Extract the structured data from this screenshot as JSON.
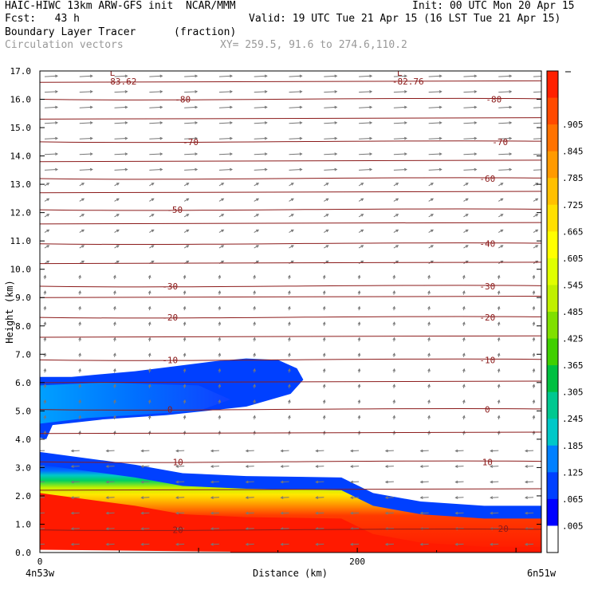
{
  "header": {
    "line1_left": "HAIC-HIWC 13km ARW-GFS init  NCAR/MMM",
    "line1_right": "Init: 00 UTC Mon 20 Apr 15",
    "line2_left": "Fcst:   43 h",
    "line2_right": "Valid: 19 UTC Tue 21 Apr 15 (16 LST Tue 21 Apr 15)",
    "line3_left": "Boundary Layer Tracer",
    "line3_mid": "(fraction)",
    "line4_left": "Circulation vectors",
    "line4_mid": "XY= 259.5, 91.6 to 274.6,110.2"
  },
  "chart_data": {
    "type": "heatmap",
    "xlabel": "Distance (km)",
    "ylabel": "Height (km)",
    "xlim": [
      0,
      316
    ],
    "ylim": [
      0,
      17
    ],
    "x_ticks": [
      {
        "value": 0,
        "label": "0"
      },
      {
        "value": 200,
        "label": "200"
      }
    ],
    "x_end_labels": {
      "left": "4n53w",
      "right": "6n51w"
    },
    "y_ticks": [
      "0.0",
      "1.0",
      "2.0",
      "3.0",
      "4.0",
      "5.0",
      "6.0",
      "7.0",
      "8.0",
      "9.0",
      "10.0",
      "11.0",
      "12.0",
      "13.0",
      "14.0",
      "15.0",
      "16.0",
      "17.0"
    ],
    "colorbar": {
      "labels": [
        ".905",
        ".845",
        ".785",
        ".725",
        ".665",
        ".605",
        ".545",
        ".485",
        ".425",
        ".365",
        ".305",
        ".245",
        ".185",
        ".125",
        ".065",
        ".005"
      ],
      "colors": [
        "#ff2000",
        "#ff4a00",
        "#ff7200",
        "#ff9a00",
        "#ffc000",
        "#ffe000",
        "#ffff00",
        "#e0ff00",
        "#c0f000",
        "#80e000",
        "#40d000",
        "#00c040",
        "#00c890",
        "#00c8c8",
        "#0080ff",
        "#0040ff",
        "#0000ff",
        "#ffffff"
      ]
    },
    "tracer_field": {
      "lower_layer_top_km": [
        [
          0,
          3.55
        ],
        [
          20,
          3.4
        ],
        [
          60,
          3.1
        ],
        [
          90,
          2.8
        ],
        [
          130,
          2.7
        ],
        [
          190,
          2.65
        ],
        [
          210,
          2.1
        ],
        [
          240,
          1.8
        ],
        [
          280,
          1.65
        ],
        [
          316,
          1.65
        ]
      ],
      "upper_layer": {
        "base_km": 4.0,
        "top_km": 6.85,
        "x_end": 166
      }
    },
    "temperature_contours_C": [
      {
        "value": -80,
        "height_km": 16.0
      },
      {
        "value": -70,
        "height_km": 14.5
      },
      {
        "value": -60,
        "height_km": 13.2
      },
      {
        "value": -50,
        "height_km": 12.1
      },
      {
        "value": -40,
        "height_km": 10.9
      },
      {
        "value": -30,
        "height_km": 9.4
      },
      {
        "value": -20,
        "height_km": 8.3
      },
      {
        "value": -10,
        "height_km": 6.8
      },
      {
        "value": 0,
        "height_km": 5.05
      },
      {
        "value": 10,
        "height_km": 3.2
      },
      {
        "value": 20,
        "height_km": 0.8
      }
    ],
    "contour_labels": [
      "-80",
      "-80",
      "-70",
      "-70",
      "-60",
      "-50",
      "-40",
      "-30",
      "-30",
      "-20",
      "-20",
      "-10",
      "-10",
      "0",
      "0",
      "10",
      "10",
      "20",
      "20"
    ],
    "lows": [
      {
        "symbol": "L",
        "value": "-83.62"
      },
      {
        "symbol": "L",
        "value": "-82.76"
      }
    ]
  },
  "colors": {
    "contour": "#8b1a1a",
    "vector": "#777777",
    "frame": "#000000"
  }
}
